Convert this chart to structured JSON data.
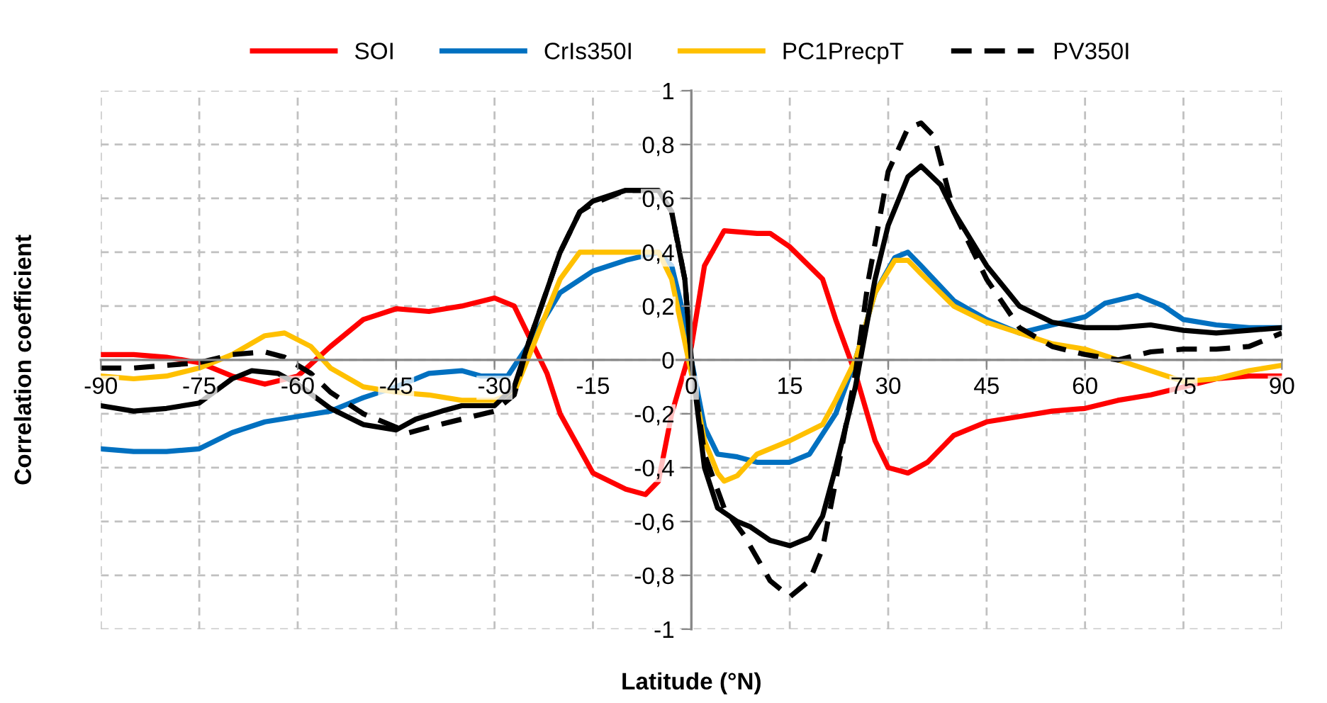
{
  "chart_data": {
    "type": "line",
    "xlabel": "Latitude (°N)",
    "ylabel": "Correlation coefficient",
    "xlim": [
      -90,
      90
    ],
    "xticks": [
      -90,
      -75,
      -60,
      -45,
      -30,
      -15,
      0,
      15,
      30,
      45,
      60,
      75,
      90
    ],
    "ylim": [
      -1,
      1
    ],
    "yticks": [
      {
        "value": -1,
        "label": "-1"
      },
      {
        "value": -0.8,
        "label": "-0,8"
      },
      {
        "value": -0.6,
        "label": "-0,6"
      },
      {
        "value": -0.4,
        "label": "-0,4"
      },
      {
        "value": -0.2,
        "label": "-0,2"
      },
      {
        "value": 0,
        "label": "0"
      },
      {
        "value": 0.2,
        "label": "0,2"
      },
      {
        "value": 0.4,
        "label": "0,4"
      },
      {
        "value": 0.6,
        "label": "0,6"
      },
      {
        "value": 0.8,
        "label": "0,8"
      },
      {
        "value": 1,
        "label": "1"
      }
    ],
    "grid": true,
    "legend": "top",
    "marker": "none",
    "series": [
      {
        "name": "SOI",
        "color": "#ff0000",
        "line_style": "solid",
        "x": [
          -90,
          -85,
          -80,
          -75,
          -70,
          -65,
          -60,
          -55,
          -50,
          -45,
          -40,
          -35,
          -30,
          -27,
          -25,
          -22,
          -20,
          -15,
          -10,
          -7,
          -5,
          -3,
          0,
          2,
          5,
          10,
          12,
          15,
          20,
          22,
          25,
          28,
          30,
          33,
          36,
          40,
          45,
          50,
          55,
          60,
          65,
          70,
          75,
          80,
          85,
          90
        ],
        "values": [
          0.02,
          0.02,
          0.01,
          -0.01,
          -0.06,
          -0.09,
          -0.06,
          0.05,
          0.15,
          0.19,
          0.18,
          0.2,
          0.23,
          0.2,
          0.1,
          -0.05,
          -0.2,
          -0.42,
          -0.48,
          -0.5,
          -0.45,
          -0.2,
          0.05,
          0.35,
          0.48,
          0.47,
          0.47,
          0.42,
          0.3,
          0.15,
          -0.05,
          -0.3,
          -0.4,
          -0.42,
          -0.38,
          -0.28,
          -0.23,
          -0.21,
          -0.19,
          -0.18,
          -0.15,
          -0.13,
          -0.1,
          -0.07,
          -0.06,
          -0.06
        ]
      },
      {
        "name": "CrIs350I",
        "color": "#0070c0",
        "line_style": "solid",
        "x": [
          -90,
          -85,
          -80,
          -75,
          -70,
          -65,
          -60,
          -55,
          -50,
          -45,
          -40,
          -35,
          -32,
          -28,
          -25,
          -20,
          -15,
          -10,
          -5,
          -3,
          -1,
          0,
          2,
          4,
          7,
          10,
          15,
          18,
          22,
          25,
          28,
          31,
          33,
          35,
          40,
          45,
          50,
          55,
          60,
          63,
          68,
          72,
          75,
          80,
          85,
          90
        ],
        "values": [
          -0.33,
          -0.34,
          -0.34,
          -0.33,
          -0.27,
          -0.23,
          -0.21,
          -0.19,
          -0.14,
          -0.1,
          -0.05,
          -0.04,
          -0.06,
          -0.06,
          0.05,
          0.25,
          0.33,
          0.37,
          0.4,
          0.35,
          0.15,
          0.0,
          -0.25,
          -0.35,
          -0.36,
          -0.38,
          -0.38,
          -0.35,
          -0.2,
          0.0,
          0.25,
          0.38,
          0.4,
          0.35,
          0.22,
          0.15,
          0.1,
          0.13,
          0.16,
          0.21,
          0.24,
          0.2,
          0.15,
          0.13,
          0.12,
          0.12
        ]
      },
      {
        "name": "PC1PrecpT",
        "color": "#ffc000",
        "line_style": "solid",
        "x": [
          -90,
          -85,
          -80,
          -75,
          -70,
          -65,
          -62,
          -58,
          -55,
          -50,
          -45,
          -40,
          -35,
          -30,
          -27,
          -25,
          -20,
          -17,
          -10,
          -5,
          -3,
          0,
          2,
          4,
          5,
          7,
          10,
          15,
          20,
          22,
          25,
          28,
          31,
          33,
          35,
          40,
          45,
          50,
          55,
          60,
          65,
          70,
          75,
          80,
          85,
          90
        ],
        "values": [
          -0.06,
          -0.07,
          -0.06,
          -0.03,
          0.02,
          0.09,
          0.1,
          0.05,
          -0.03,
          -0.1,
          -0.12,
          -0.13,
          -0.15,
          -0.15,
          -0.12,
          0.0,
          0.3,
          0.4,
          0.4,
          0.4,
          0.3,
          -0.05,
          -0.3,
          -0.42,
          -0.45,
          -0.43,
          -0.35,
          -0.3,
          -0.24,
          -0.15,
          0.0,
          0.25,
          0.37,
          0.37,
          0.32,
          0.2,
          0.14,
          0.1,
          0.06,
          0.04,
          0.0,
          -0.04,
          -0.08,
          -0.07,
          -0.04,
          -0.02
        ]
      },
      {
        "name": "PV350I",
        "color": "#000000",
        "line_style": "dashed",
        "x": [
          -90,
          -85,
          -80,
          -75,
          -70,
          -65,
          -62,
          -58,
          -55,
          -50,
          -45,
          -43,
          -40,
          -35,
          -30,
          -27,
          -25,
          -20,
          -17,
          -15,
          -10,
          -5,
          -3,
          -1,
          0,
          2,
          5,
          8,
          12,
          15,
          18,
          20,
          22,
          25,
          27,
          30,
          33,
          35,
          37,
          40,
          45,
          50,
          55,
          60,
          65,
          70,
          75,
          80,
          85,
          90
        ],
        "values": [
          -0.03,
          -0.03,
          -0.02,
          -0.01,
          0.02,
          0.03,
          0.01,
          -0.05,
          -0.12,
          -0.2,
          -0.25,
          -0.27,
          -0.25,
          -0.22,
          -0.19,
          -0.13,
          0.05,
          0.4,
          0.55,
          0.58,
          0.63,
          0.63,
          0.55,
          0.3,
          0.0,
          -0.35,
          -0.55,
          -0.65,
          -0.82,
          -0.88,
          -0.82,
          -0.7,
          -0.45,
          -0.05,
          0.3,
          0.7,
          0.86,
          0.88,
          0.83,
          0.55,
          0.3,
          0.12,
          0.05,
          0.02,
          0.0,
          0.03,
          0.04,
          0.04,
          0.05,
          0.1
        ]
      },
      {
        "color": "#000000",
        "line_style": "solid",
        "x": [
          -90,
          -85,
          -80,
          -75,
          -70,
          -67,
          -63,
          -60,
          -55,
          -50,
          -45,
          -42,
          -38,
          -35,
          -30,
          -27,
          -25,
          -20,
          -17,
          -15,
          -10,
          -5,
          -3,
          -1,
          0,
          2,
          4,
          7,
          9,
          12,
          15,
          18,
          20,
          22,
          25,
          28,
          30,
          33,
          35,
          38,
          40,
          45,
          50,
          55,
          60,
          65,
          70,
          75,
          80,
          85,
          90
        ],
        "values": [
          -0.17,
          -0.19,
          -0.18,
          -0.16,
          -0.07,
          -0.04,
          -0.05,
          -0.09,
          -0.18,
          -0.24,
          -0.26,
          -0.22,
          -0.19,
          -0.17,
          -0.17,
          -0.1,
          0.05,
          0.4,
          0.55,
          0.59,
          0.63,
          0.63,
          0.55,
          0.3,
          0.0,
          -0.4,
          -0.55,
          -0.6,
          -0.62,
          -0.67,
          -0.69,
          -0.66,
          -0.58,
          -0.4,
          -0.1,
          0.3,
          0.5,
          0.68,
          0.72,
          0.65,
          0.55,
          0.35,
          0.2,
          0.14,
          0.12,
          0.12,
          0.13,
          0.11,
          0.1,
          0.11,
          0.12
        ]
      }
    ]
  }
}
